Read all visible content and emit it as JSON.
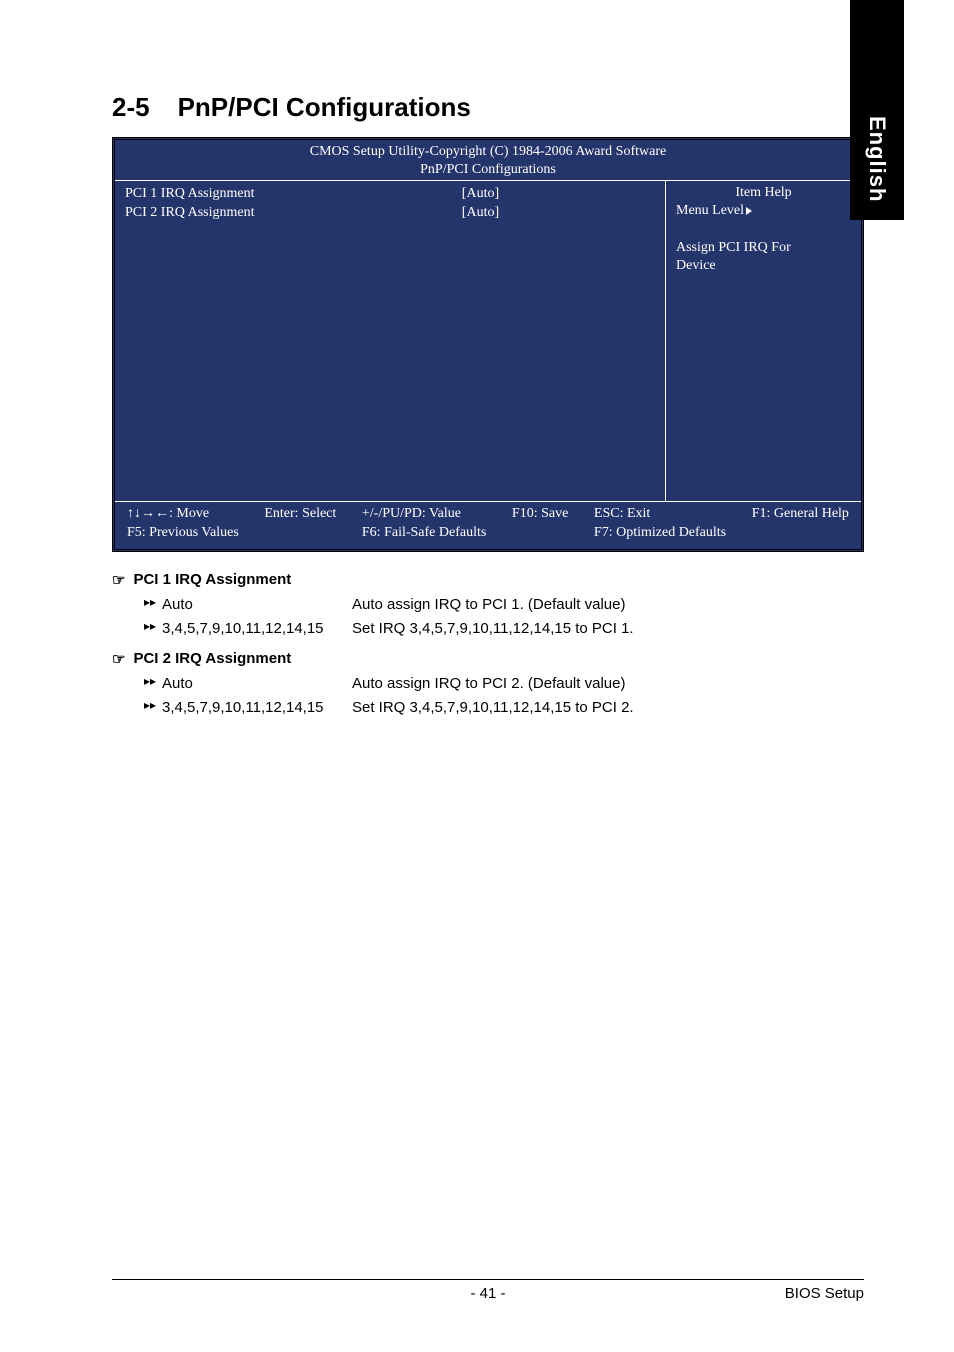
{
  "side_tab": "English",
  "heading": {
    "num": "2-5",
    "title": "PnP/PCI Configurations"
  },
  "bios": {
    "colors": {
      "background": "#24356b",
      "text": "#ffffff",
      "border": "#000000"
    },
    "title_line1": "CMOS Setup Utility-Copyright (C) 1984-2006 Award Software",
    "title_line2": "PnP/PCI Configurations",
    "rows": [
      {
        "label": "PCI 1 IRQ Assignment",
        "value": "[Auto]"
      },
      {
        "label": "PCI 2 IRQ Assignment",
        "value": "[Auto]"
      }
    ],
    "help": {
      "title": "Item Help",
      "menu_level": "Menu Level",
      "desc_line1": "Assign PCI IRQ For",
      "desc_line2": "Device"
    },
    "footer": {
      "c1a": "↑↓→←: Move",
      "c1b": "F5: Previous Values",
      "c2a": "Enter: Select",
      "c3a": "+/-/PU/PD: Value",
      "c3b": "F6: Fail-Safe Defaults",
      "c4a": "F10: Save",
      "c5a": "ESC: Exit",
      "c5b": "F7: Optimized Defaults",
      "c6a": "F1: General Help"
    }
  },
  "options": [
    {
      "title": "PCI 1 IRQ Assignment",
      "items": [
        {
          "key": "Auto",
          "desc": "Auto assign IRQ to PCI 1. (Default value)"
        },
        {
          "key": "3,4,5,7,9,10,11,12,14,15",
          "desc": "Set IRQ 3,4,5,7,9,10,11,12,14,15 to PCI 1."
        }
      ]
    },
    {
      "title": "PCI 2 IRQ Assignment",
      "items": [
        {
          "key": "Auto",
          "desc": "Auto assign IRQ to PCI 2. (Default value)"
        },
        {
          "key": "3,4,5,7,9,10,11,12,14,15",
          "desc": "Set IRQ 3,4,5,7,9,10,11,12,14,15 to PCI 2."
        }
      ]
    }
  ],
  "footer": {
    "page": "- 41 -",
    "section": "BIOS Setup"
  }
}
